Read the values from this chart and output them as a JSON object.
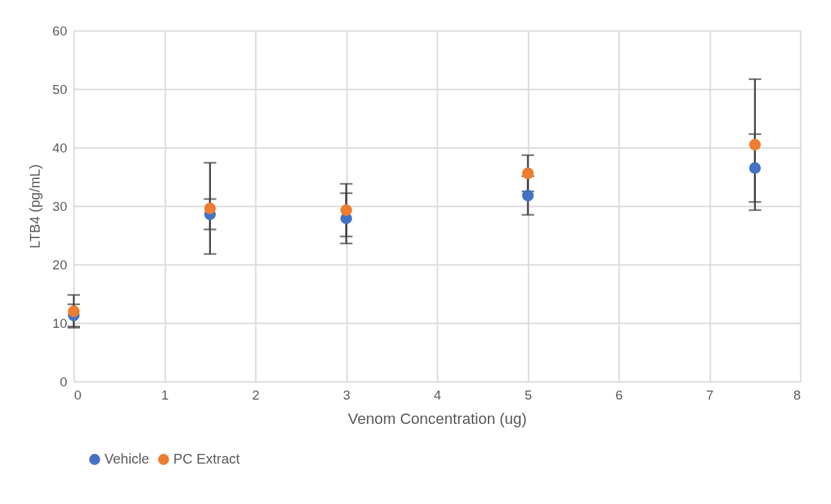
{
  "chart_data": {
    "type": "scatter",
    "xlabel": "Venom Concentration (ug)",
    "ylabel": "LTB4  (pg/mL)",
    "x": [
      0,
      1.5,
      3,
      5,
      7.5
    ],
    "series": [
      {
        "name": "Vehicle",
        "color": "#4472c4",
        "values": [
          11.3,
          28.6,
          27.9,
          31.8,
          36.5
        ],
        "errors": [
          1.9,
          2.6,
          4.3,
          3.3,
          5.8
        ]
      },
      {
        "name": "PC Extract",
        "color": "#ed7d31",
        "values": [
          12.0,
          29.6,
          29.3,
          35.6,
          40.5
        ],
        "errors": [
          2.8,
          7.8,
          4.5,
          3.1,
          11.2
        ]
      }
    ],
    "xlim": [
      0,
      8
    ],
    "xticks": [
      0,
      1,
      2,
      3,
      4,
      5,
      6,
      7,
      8
    ],
    "ylim": [
      0,
      60
    ],
    "yticks": [
      0,
      10,
      20,
      30,
      40,
      50,
      60
    ],
    "grid": true,
    "legend": "bottom",
    "marker": "circle"
  }
}
